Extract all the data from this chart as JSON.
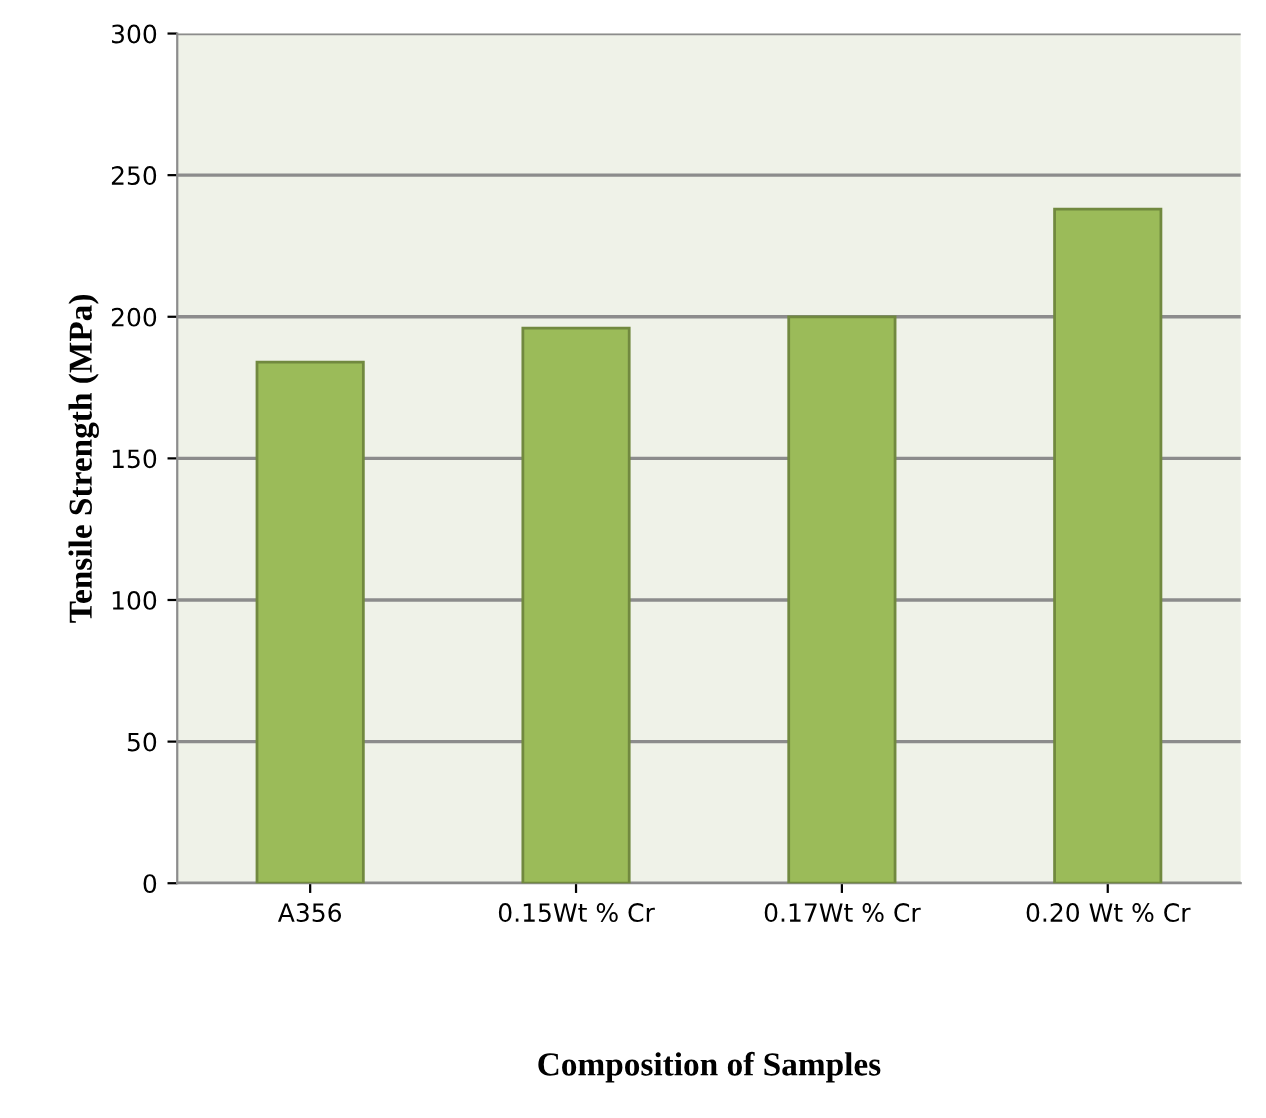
{
  "chart_data": {
    "type": "bar",
    "xlabel": "Composition of Samples",
    "ylabel": "Tensile Strength (MPa)",
    "categories": [
      "A356",
      "0.15Wt % Cr",
      "0.17Wt % Cr",
      "0.20 Wt % Cr"
    ],
    "values": [
      184,
      196,
      200,
      238
    ],
    "color": "#9bbb59",
    "ylim": [
      0,
      300
    ],
    "yticks": [
      0,
      50,
      100,
      150,
      200,
      250,
      300
    ],
    "grid": "y"
  }
}
